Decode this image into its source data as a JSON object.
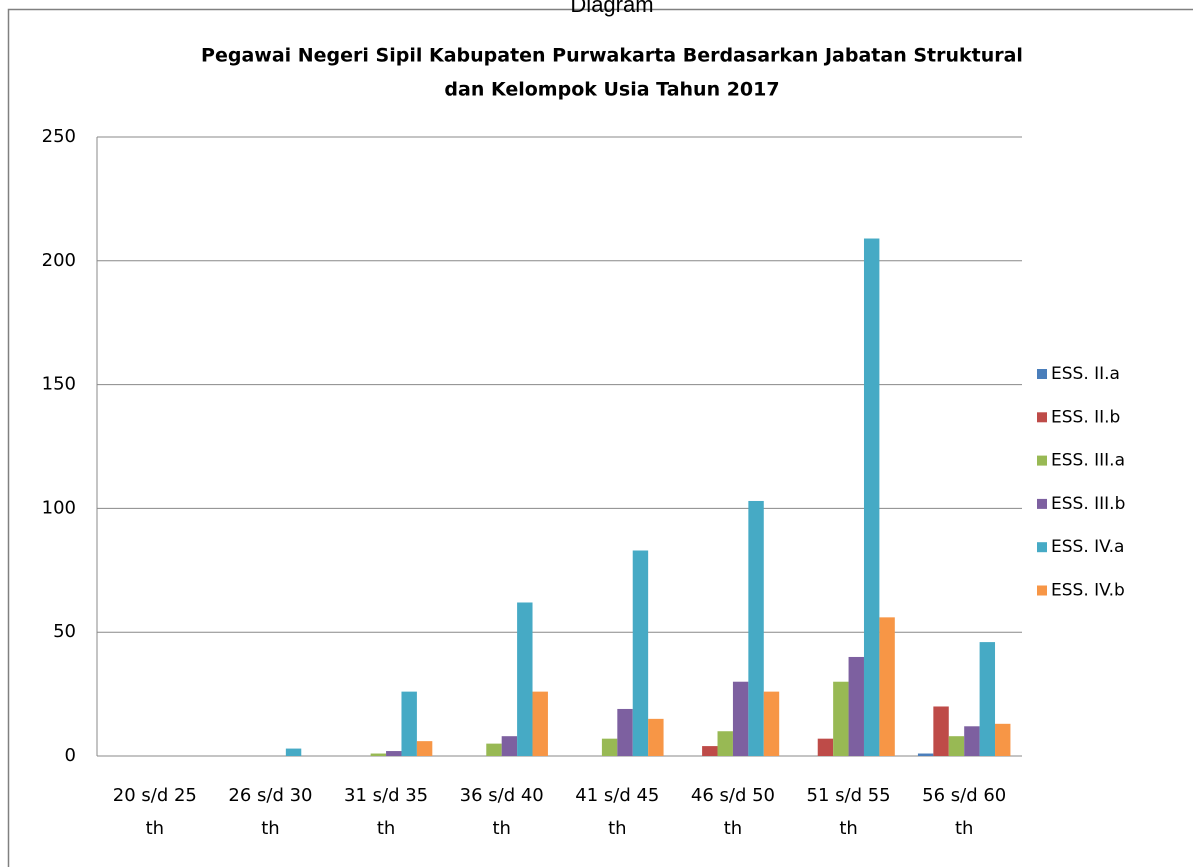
{
  "caption": "Diagram",
  "chart_data": {
    "type": "bar",
    "title": [
      "Pegawai Negeri Sipil Kabupaten Purwakarta Berdasarkan Jabatan Struktural",
      "dan Kelompok Usia Tahun 2017"
    ],
    "categories": [
      "20 s/d 25 th",
      "26 s/d 30 th",
      "31 s/d 35 th",
      "36 s/d 40 th",
      "41 s/d 45 th",
      "46 s/d 50 th",
      "51 s/d 55 th",
      "56 s/d 60 th"
    ],
    "series": [
      {
        "name": "ESS. II.a",
        "color": "#4a7ebb",
        "values": [
          0,
          0,
          0,
          0,
          0,
          0,
          0,
          1
        ]
      },
      {
        "name": "ESS. II.b",
        "color": "#be4b48",
        "values": [
          0,
          0,
          0,
          0,
          0,
          4,
          7,
          20
        ]
      },
      {
        "name": "ESS. III.a",
        "color": "#98b954",
        "values": [
          0,
          0,
          1,
          5,
          7,
          10,
          30,
          8
        ]
      },
      {
        "name": "ESS. III.b",
        "color": "#7d60a0",
        "values": [
          0,
          0,
          2,
          8,
          19,
          30,
          40,
          12
        ]
      },
      {
        "name": "ESS. IV.a",
        "color": "#46aac5",
        "values": [
          0,
          3,
          26,
          62,
          83,
          103,
          209,
          46
        ]
      },
      {
        "name": "ESS. IV.b",
        "color": "#f79646",
        "values": [
          0,
          0,
          6,
          26,
          15,
          26,
          56,
          13
        ]
      }
    ],
    "ylim": [
      0,
      250
    ],
    "yticks": [
      0,
      50,
      100,
      150,
      200,
      250
    ],
    "grid": true,
    "legend": "right"
  }
}
